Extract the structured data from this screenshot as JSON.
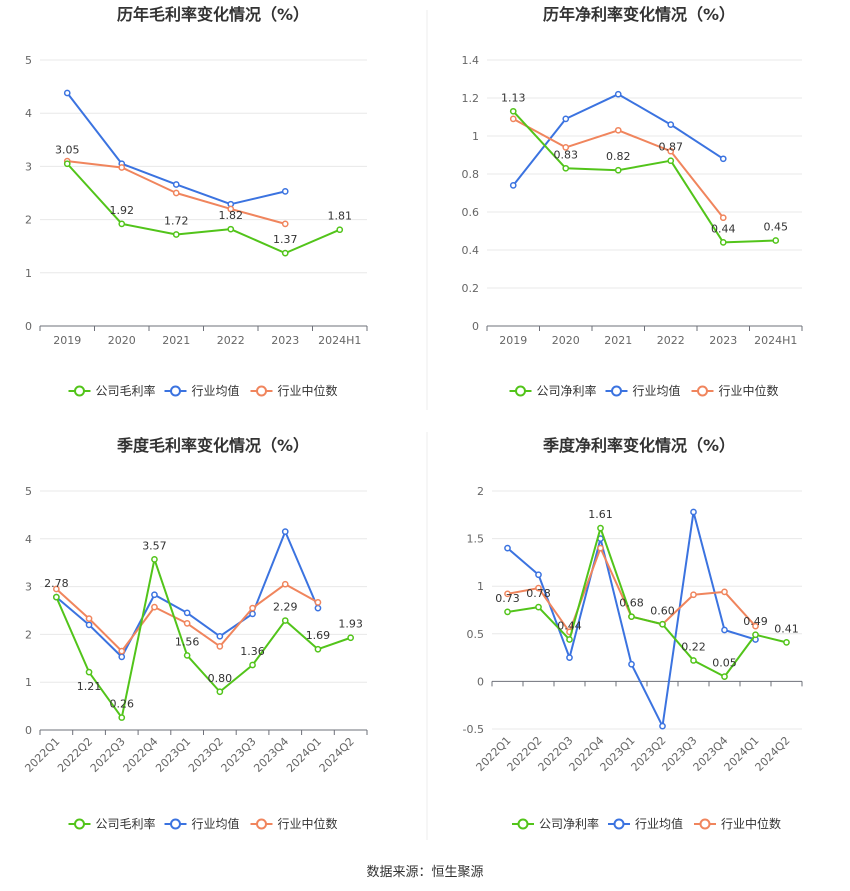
{
  "colors": {
    "company": "#52c41a",
    "avg": "#3b73e0",
    "median": "#f0855d"
  },
  "source_label": "数据来源：恒生聚源",
  "chart_data": [
    {
      "type": "line",
      "title": "历年毛利率变化情况（%）",
      "categories": [
        "2019",
        "2020",
        "2021",
        "2022",
        "2023",
        "2024H1"
      ],
      "ylim": [
        0,
        5
      ],
      "yticks": [
        "0",
        "1",
        "2",
        "3",
        "4",
        "5"
      ],
      "legend": [
        "公司毛利率",
        "行业均值",
        "行业中位数"
      ],
      "series": [
        {
          "name": "公司毛利率",
          "values": [
            3.05,
            1.92,
            1.72,
            1.82,
            1.37,
            1.81
          ],
          "labels": [
            "3.05",
            "1.92",
            "1.72",
            "1.82",
            "1.37",
            "1.81"
          ]
        },
        {
          "name": "行业均值",
          "values": [
            4.38,
            3.05,
            2.66,
            2.29,
            2.53,
            null
          ]
        },
        {
          "name": "行业中位数",
          "values": [
            3.1,
            2.98,
            2.5,
            2.2,
            1.92,
            null
          ]
        }
      ]
    },
    {
      "type": "line",
      "title": "历年净利率变化情况（%）",
      "categories": [
        "2019",
        "2020",
        "2021",
        "2022",
        "2023",
        "2024H1"
      ],
      "ylim": [
        0,
        1.4
      ],
      "yticks": [
        "0",
        "0.2",
        "0.4",
        "0.6",
        "0.8",
        "1",
        "1.2",
        "1.4"
      ],
      "legend": [
        "公司净利率",
        "行业均值",
        "行业中位数"
      ],
      "series": [
        {
          "name": "公司净利率",
          "values": [
            1.13,
            0.83,
            0.82,
            0.87,
            0.44,
            0.45
          ],
          "labels": [
            "1.13",
            "0.83",
            "0.82",
            "0.87",
            "0.44",
            "0.45"
          ]
        },
        {
          "name": "行业均值",
          "values": [
            0.74,
            1.09,
            1.22,
            1.06,
            0.88,
            null
          ]
        },
        {
          "name": "行业中位数",
          "values": [
            1.09,
            0.94,
            1.03,
            0.92,
            0.57,
            null
          ]
        }
      ]
    },
    {
      "type": "line",
      "title": "季度毛利率变化情况（%）",
      "categories": [
        "2022Q1",
        "2022Q2",
        "2022Q3",
        "2022Q4",
        "2023Q1",
        "2023Q2",
        "2023Q3",
        "2023Q4",
        "2024Q1",
        "2024Q2"
      ],
      "ylim": [
        0,
        5
      ],
      "yticks": [
        "0",
        "1",
        "2",
        "3",
        "4",
        "5"
      ],
      "legend": [
        "公司毛利率",
        "行业均值",
        "行业中位数"
      ],
      "series": [
        {
          "name": "公司毛利率",
          "values": [
            2.78,
            1.21,
            0.26,
            3.57,
            1.56,
            0.8,
            1.36,
            2.29,
            1.69,
            1.93
          ],
          "labels": [
            "2.78",
            "1.21",
            "0.26",
            "3.57",
            "1.56",
            "0.80",
            "1.36",
            "2.29",
            "1.69",
            "1.93"
          ]
        },
        {
          "name": "行业均值",
          "values": [
            2.78,
            2.2,
            1.53,
            2.83,
            2.45,
            1.96,
            2.43,
            4.15,
            2.55,
            null
          ]
        },
        {
          "name": "行业中位数",
          "values": [
            2.95,
            2.33,
            1.65,
            2.57,
            2.23,
            1.75,
            2.55,
            3.05,
            2.67,
            null
          ]
        }
      ]
    },
    {
      "type": "line",
      "title": "季度净利率变化情况（%）",
      "categories": [
        "2022Q1",
        "2022Q2",
        "2022Q3",
        "2022Q4",
        "2023Q1",
        "2023Q2",
        "2023Q3",
        "2023Q4",
        "2024Q1",
        "2024Q2"
      ],
      "ylim": [
        -0.5,
        2
      ],
      "yticks": [
        "-0.5",
        "0",
        "0.5",
        "1",
        "1.5",
        "2"
      ],
      "legend": [
        "公司净利率",
        "行业均值",
        "行业中位数"
      ],
      "series": [
        {
          "name": "公司净利率",
          "values": [
            0.73,
            0.78,
            0.44,
            1.61,
            0.68,
            0.6,
            0.22,
            0.05,
            0.49,
            0.41
          ],
          "labels": [
            "0.73",
            "0.78",
            "0.44",
            "1.61",
            "0.68",
            "0.60",
            "0.22",
            "0.05",
            "0.49",
            "0.41"
          ]
        },
        {
          "name": "行业均值",
          "values": [
            1.4,
            1.12,
            0.25,
            1.5,
            0.18,
            -0.47,
            1.78,
            0.54,
            0.44,
            null
          ]
        },
        {
          "name": "行业中位数",
          "values": [
            0.92,
            0.98,
            0.52,
            1.4,
            0.68,
            0.6,
            0.91,
            0.94,
            0.58,
            null
          ]
        }
      ]
    }
  ]
}
